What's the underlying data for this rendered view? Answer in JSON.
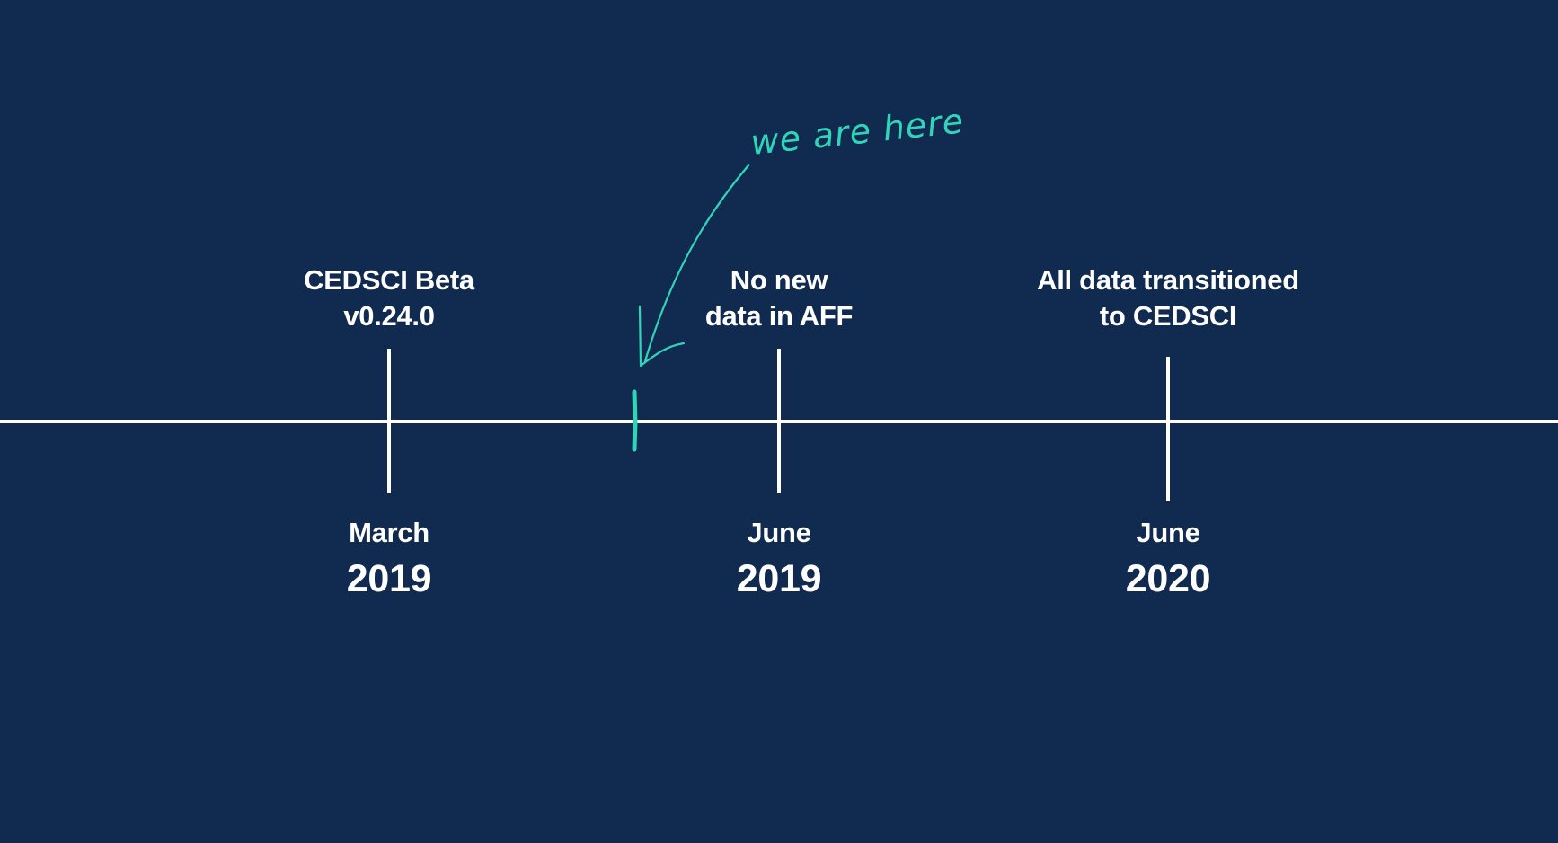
{
  "timeline": {
    "milestones": [
      {
        "id": "cedsci-beta",
        "above_line1": "CEDSCI Beta",
        "above_line2": "v0.24.0",
        "month": "March",
        "year": "2019"
      },
      {
        "id": "no-new-data",
        "above_line1": "No new",
        "above_line2": "data in AFF",
        "month": "June",
        "year": "2019"
      },
      {
        "id": "all-data",
        "above_line1": "All data transitioned",
        "above_line2": "to CEDSCI",
        "month": "June",
        "year": "2020"
      }
    ],
    "annotation": {
      "text": "we are here",
      "color": "#2fd4b9"
    }
  },
  "colors": {
    "background": "#112a4f",
    "line": "#ffffff",
    "accent": "#2fd4b9"
  }
}
